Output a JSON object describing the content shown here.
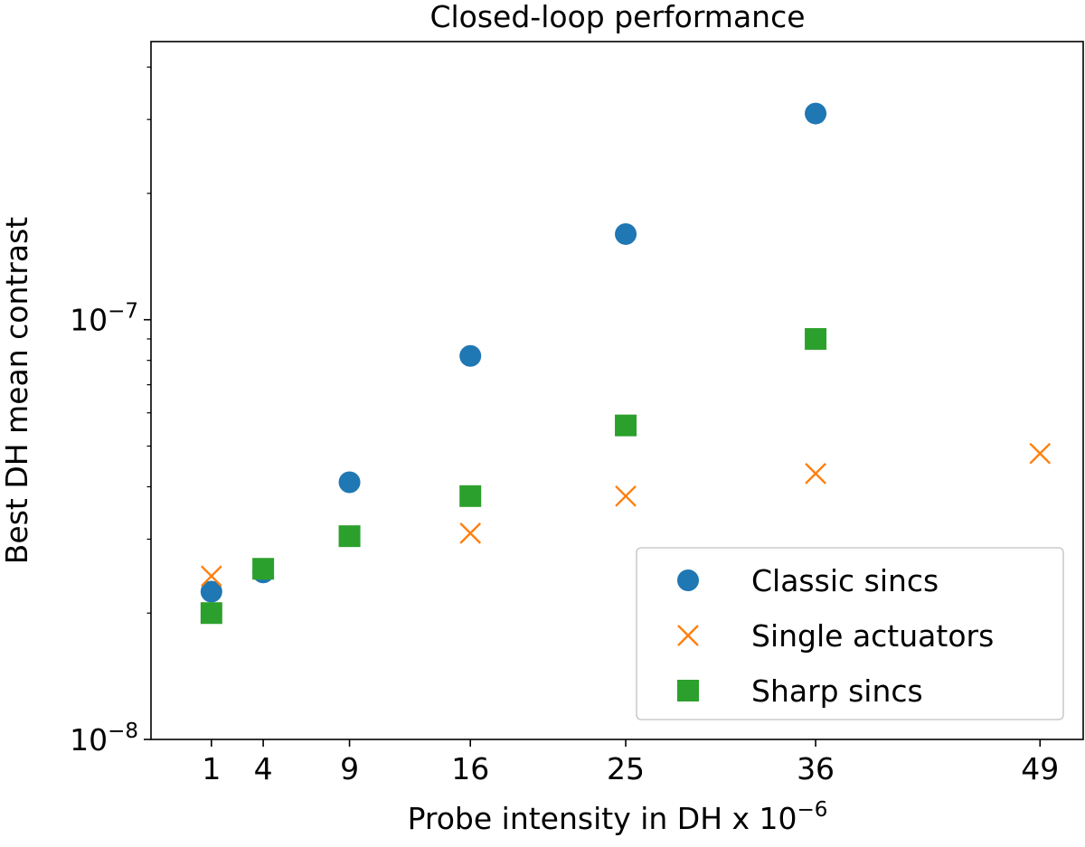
{
  "chart_data": {
    "type": "scatter",
    "title": "Closed-loop performance",
    "xlabel": "Probe intensity in DH x 10",
    "xlabel_exponent": "−6",
    "ylabel": "Best DH mean contrast",
    "xlim": [
      -2.5,
      51.5
    ],
    "ylim": [
      1e-08,
      4.6e-07
    ],
    "yscale": "log",
    "xticks": [
      1,
      4,
      9,
      16,
      25,
      36,
      49
    ],
    "yticks": [
      {
        "value": 1e-07,
        "base": "10",
        "exp": "−7"
      },
      {
        "value": 1e-08,
        "base": "10",
        "exp": "−8"
      }
    ],
    "legend_position": "lower-right",
    "series": [
      {
        "name": "Classic sincs",
        "marker": "circle",
        "color": "#1f77b4",
        "x": [
          1,
          4,
          9,
          16,
          25,
          36
        ],
        "y": [
          2.25e-08,
          2.5e-08,
          4.1e-08,
          8.2e-08,
          1.6e-07,
          3.1e-07
        ]
      },
      {
        "name": "Single actuators",
        "marker": "x",
        "color": "#ff7f0e",
        "x": [
          1,
          16,
          25,
          36,
          49
        ],
        "y": [
          2.45e-08,
          3.1e-08,
          3.8e-08,
          4.3e-08,
          4.8e-08
        ]
      },
      {
        "name": "Sharp sincs",
        "marker": "square",
        "color": "#2ca02c",
        "x": [
          1,
          4,
          9,
          16,
          25,
          36
        ],
        "y": [
          2e-08,
          2.55e-08,
          3.05e-08,
          3.8e-08,
          5.6e-08,
          9e-08
        ]
      }
    ]
  }
}
